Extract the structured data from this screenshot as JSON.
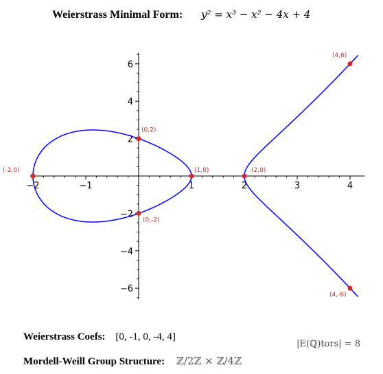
{
  "header": {
    "label": "Weierstrass Minimal Form:",
    "equation": "y² = x³ − x² − 4x + 4"
  },
  "footer": {
    "coefs_label": "Weierstrass Coefs:",
    "coefs_value": "[0, -1, 0, -4, 4]",
    "mw_label": "Mordell-Weill Group Structure:",
    "mw_value": "ℤ/2ℤ × ℤ/4ℤ",
    "torsion": "|E(ℚ)tors| = 8"
  },
  "colors": {
    "curve": "#0000ff",
    "points": "#d62728",
    "axes": "#000000"
  },
  "chart_data": {
    "type": "line",
    "title": "",
    "xlabel": "",
    "ylabel": "",
    "xlim": [
      -2.05,
      4.15
    ],
    "ylim": [
      -6.6,
      6.6
    ],
    "xticks": [
      -2,
      -1,
      1,
      2,
      3,
      4
    ],
    "yticks": [
      -6,
      -4,
      -2,
      2,
      4,
      6
    ],
    "series": [
      {
        "values_function": "y^2 = x^3 - x^2 - 4x + 4",
        "x_ranges": [
          [
            -2,
            1
          ],
          [
            2,
            4.15
          ]
        ]
      }
    ],
    "points": [
      {
        "x": -2,
        "y": 0,
        "label": "(-2,0)"
      },
      {
        "x": 0,
        "y": 2,
        "label": "(0,2)"
      },
      {
        "x": 0,
        "y": -2,
        "label": "(0,-2)"
      },
      {
        "x": 1,
        "y": 0,
        "label": "(1,0)"
      },
      {
        "x": 2,
        "y": 0,
        "label": "(2,0)"
      },
      {
        "x": 4,
        "y": 6,
        "label": "(4,6)"
      },
      {
        "x": 4,
        "y": -6,
        "label": "(4,-6)"
      }
    ]
  }
}
